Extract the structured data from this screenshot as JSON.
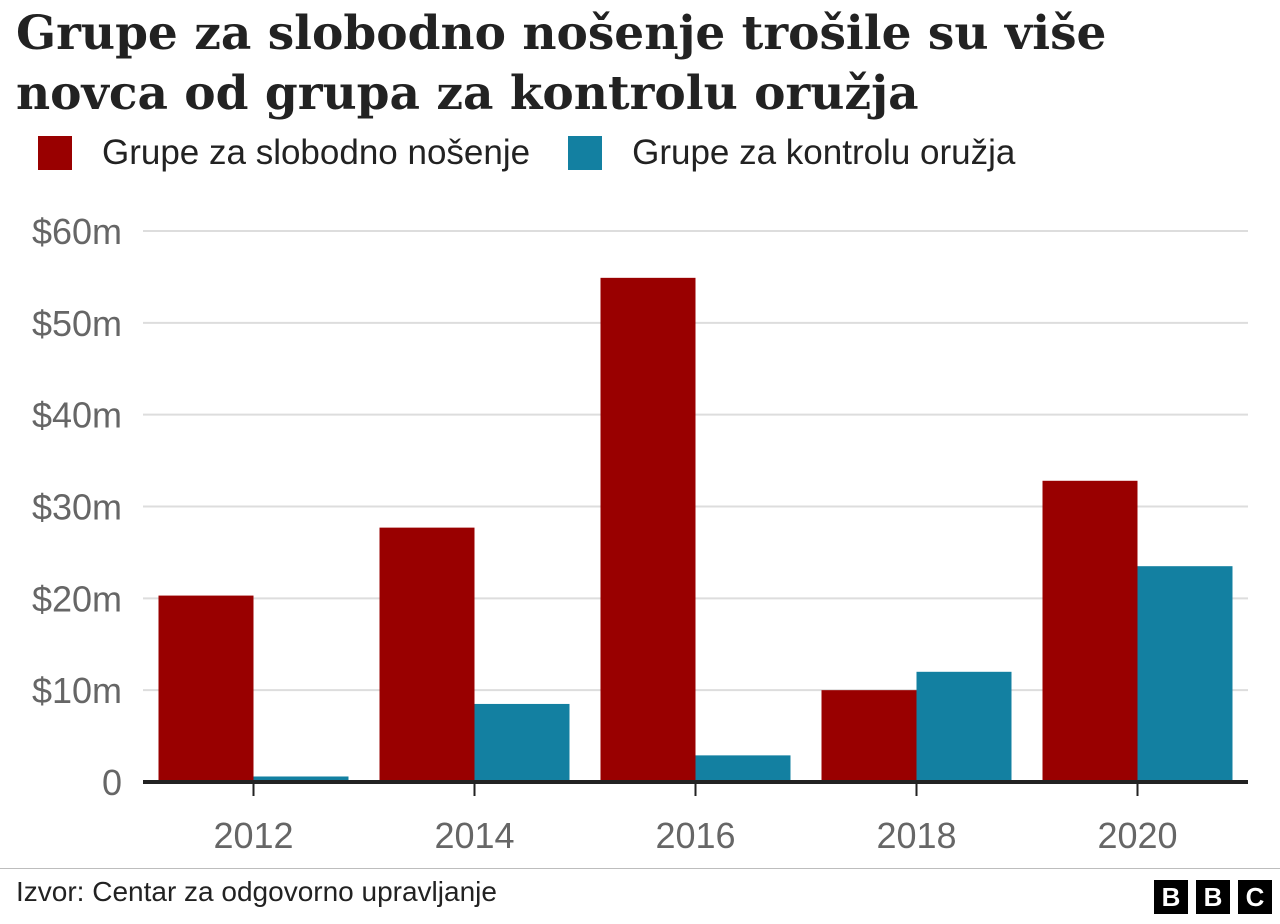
{
  "title": "Grupe za slobodno nošenje trošile su više novca od grupa za kontrolu oružja",
  "source": "Izvor: Centar za odgovorno upravljanje",
  "logo": [
    "B",
    "B",
    "C"
  ],
  "colors": {
    "series_1": "#990000",
    "series_2": "#1380A1",
    "grid": "#dddddd",
    "axis": "#222222",
    "tick_text": "#666666"
  },
  "chart_data": {
    "type": "bar",
    "categories": [
      "2012",
      "2014",
      "2016",
      "2018",
      "2020"
    ],
    "series": [
      {
        "name": "Grupe za slobodno nošenje",
        "values": [
          20.3,
          27.7,
          54.9,
          10.0,
          32.8
        ]
      },
      {
        "name": "Grupe za kontrolu oružja",
        "values": [
          0.6,
          8.5,
          2.9,
          12.0,
          23.5
        ]
      }
    ],
    "ylim": [
      0,
      60
    ],
    "yticks": [
      0,
      10,
      20,
      30,
      40,
      50,
      60
    ],
    "ytick_labels": [
      "0",
      "$10m",
      "$20m",
      "$30m",
      "$40m",
      "$50m",
      "$60m"
    ],
    "grid": true,
    "legend": "top-left"
  }
}
